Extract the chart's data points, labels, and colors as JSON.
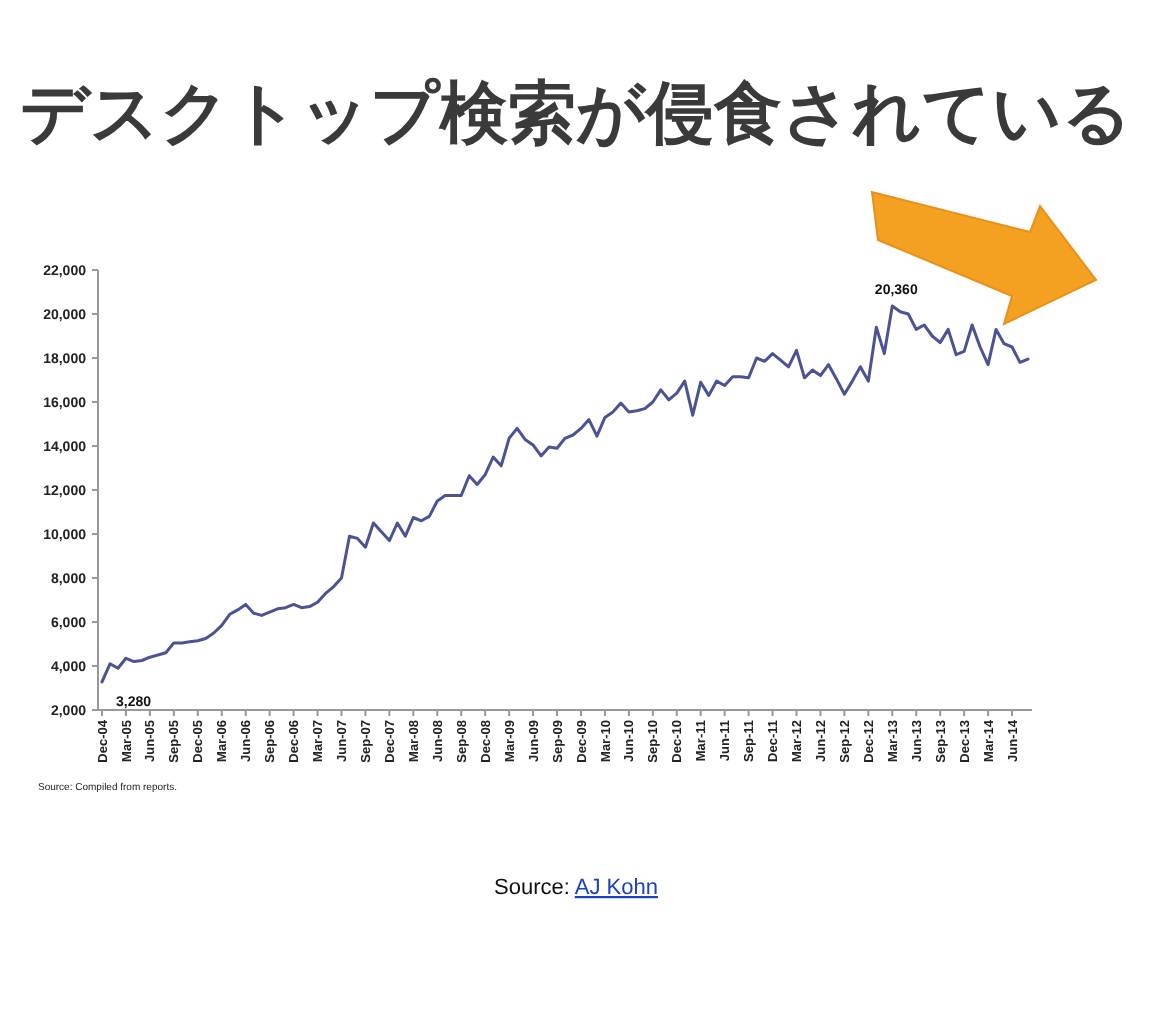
{
  "chart_data": {
    "type": "line",
    "title": "デスクトップ検索が侵食されている",
    "categories": [
      "Dec-04",
      null,
      null,
      "Mar-05",
      null,
      null,
      "Jun-05",
      null,
      null,
      "Sep-05",
      null,
      null,
      "Dec-05",
      null,
      null,
      "Mar-06",
      null,
      null,
      "Jun-06",
      null,
      null,
      "Sep-06",
      null,
      null,
      "Dec-06",
      null,
      null,
      "Mar-07",
      null,
      null,
      "Jun-07",
      null,
      null,
      "Sep-07",
      null,
      null,
      "Dec-07",
      null,
      null,
      "Mar-08",
      null,
      null,
      "Jun-08",
      null,
      null,
      "Sep-08",
      null,
      null,
      "Dec-08",
      null,
      null,
      "Mar-09",
      null,
      null,
      "Jun-09",
      null,
      null,
      "Sep-09",
      null,
      null,
      "Dec-09",
      null,
      null,
      "Mar-10",
      null,
      null,
      "Jun-10",
      null,
      null,
      "Sep-10",
      null,
      null,
      "Dec-10",
      null,
      null,
      "Mar-11",
      null,
      null,
      "Jun-11",
      null,
      null,
      "Sep-11",
      null,
      null,
      "Dec-11",
      null,
      null,
      "Mar-12",
      null,
      null,
      "Jun-12",
      null,
      null,
      "Sep-12",
      null,
      null,
      "Dec-12",
      null,
      null,
      "Mar-13",
      null,
      null,
      "Jun-13",
      null,
      null,
      "Sep-13",
      null,
      null,
      "Dec-13",
      null,
      null,
      "Mar-14",
      null,
      null,
      "Jun-14",
      null,
      null
    ],
    "series": [
      {
        "color": "#4b5394",
        "values": [
          3280,
          4100,
          3900,
          4350,
          4200,
          4250,
          4400,
          4500,
          4600,
          5050,
          5050,
          5100,
          5150,
          5250,
          5500,
          5850,
          6350,
          6550,
          6800,
          6400,
          6300,
          6450,
          6600,
          6650,
          6800,
          6650,
          6700,
          6900,
          7300,
          7600,
          8000,
          9900,
          9800,
          9400,
          10500,
          10100,
          9700,
          10500,
          9900,
          10750,
          10600,
          10800,
          11500,
          11750,
          11750,
          11750,
          12650,
          12250,
          12700,
          13500,
          13100,
          14350,
          14800,
          14300,
          14050,
          13550,
          13950,
          13900,
          14350,
          14500,
          14800,
          15200,
          14450,
          15300,
          15550,
          15950,
          15550,
          15600,
          15700,
          16000,
          16550,
          16100,
          16400,
          16950,
          15400,
          16900,
          16300,
          16950,
          16750,
          17150,
          17150,
          17100,
          18000,
          17850,
          18200,
          17900,
          17600,
          18350,
          17100,
          17450,
          17200,
          17700,
          17050,
          16350,
          16950,
          17600,
          16950,
          19400,
          18200,
          20360,
          20100,
          20000,
          19300,
          19500,
          19000,
          18700,
          19300,
          18150,
          18300,
          19500,
          18500,
          17700,
          19300,
          18650,
          18500,
          17800,
          17950
        ]
      }
    ],
    "ylim": [
      2000,
      22000
    ],
    "yticks": [
      {
        "value": 2000,
        "label": "2,000"
      },
      {
        "value": 4000,
        "label": "4,000"
      },
      {
        "value": 6000,
        "label": "6,000"
      },
      {
        "value": 8000,
        "label": "8,000"
      },
      {
        "value": 10000,
        "label": "10,000"
      },
      {
        "value": 12000,
        "label": "12,000"
      },
      {
        "value": 14000,
        "label": "14,000"
      },
      {
        "value": 16000,
        "label": "16,000"
      },
      {
        "value": 18000,
        "label": "18,000"
      },
      {
        "value": 20000,
        "label": "20,000"
      },
      {
        "value": 22000,
        "label": "22,000"
      }
    ],
    "annotations": [
      {
        "text": "3,280",
        "x": "Dec-04",
        "y": 3280
      },
      {
        "text": "20,360",
        "x": "Mar-13",
        "y": 20360
      },
      "Source: Compiled from reports.",
      "Source: AJ Kohn"
    ]
  }
}
